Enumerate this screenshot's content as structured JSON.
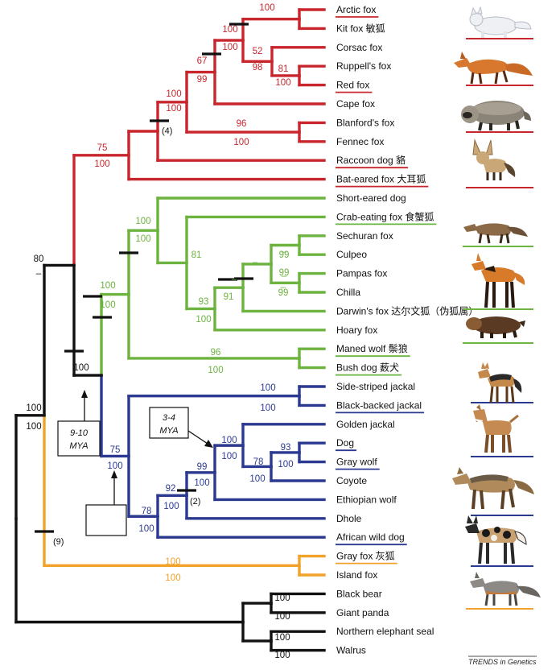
{
  "colors": {
    "fox": "#c8252c",
    "south_american": "#6cb33f",
    "wolf": "#2b3990",
    "gray_fox": "#f0a22b",
    "outgroup": "#111111"
  },
  "taxa": [
    {
      "label": "Arctic fox",
      "clade": "fox",
      "underline": true
    },
    {
      "label": "Kit fox 敏狐",
      "clade": "fox",
      "underline": false
    },
    {
      "label": "Corsac fox",
      "clade": "fox",
      "underline": false
    },
    {
      "label": "Ruppell's fox",
      "clade": "fox",
      "underline": false
    },
    {
      "label": "Red fox",
      "clade": "fox",
      "underline": true
    },
    {
      "label": "Cape fox",
      "clade": "fox",
      "underline": false
    },
    {
      "label": "Blanford's fox",
      "clade": "fox",
      "underline": false
    },
    {
      "label": "Fennec fox",
      "clade": "fox",
      "underline": false
    },
    {
      "label": "Raccoon dog 貉",
      "clade": "fox",
      "underline": true
    },
    {
      "label": "Bat-eared fox 大耳狐",
      "clade": "fox",
      "underline": true
    },
    {
      "label": "Short-eared dog",
      "clade": "south_american",
      "underline": false
    },
    {
      "label": "Crab-eating fox 食蟹狐",
      "clade": "south_american",
      "underline": true
    },
    {
      "label": "Sechuran fox",
      "clade": "south_american",
      "underline": false
    },
    {
      "label": "Culpeo",
      "clade": "south_american",
      "underline": false
    },
    {
      "label": "Pampas fox",
      "clade": "south_american",
      "underline": false
    },
    {
      "label": "Chilla",
      "clade": "south_american",
      "underline": false
    },
    {
      "label": "Darwin's fox 达尔文狐（伪狐属）",
      "clade": "south_american",
      "underline": false
    },
    {
      "label": "Hoary fox",
      "clade": "south_american",
      "underline": false
    },
    {
      "label": "Maned wolf 鬃狼",
      "clade": "south_american",
      "underline": true
    },
    {
      "label": "Bush dog 薮犬",
      "clade": "south_american",
      "underline": true
    },
    {
      "label": "Side-striped jackal",
      "clade": "wolf",
      "underline": false
    },
    {
      "label": "Black-backed jackal",
      "clade": "wolf",
      "underline": true
    },
    {
      "label": "Golden jackal",
      "clade": "wolf",
      "underline": false
    },
    {
      "label": "Dog",
      "clade": "wolf",
      "underline": true
    },
    {
      "label": "Gray wolf",
      "clade": "wolf",
      "underline": true
    },
    {
      "label": "Coyote",
      "clade": "wolf",
      "underline": false
    },
    {
      "label": "Ethiopian wolf",
      "clade": "wolf",
      "underline": false
    },
    {
      "label": "Dhole",
      "clade": "wolf",
      "underline": false
    },
    {
      "label": "African wild dog",
      "clade": "wolf",
      "underline": true
    },
    {
      "label": "Gray fox 灰狐",
      "clade": "gray_fox",
      "underline": true
    },
    {
      "label": "Island fox",
      "clade": "gray_fox",
      "underline": false
    },
    {
      "label": "Black bear",
      "clade": "outgroup",
      "underline": false
    },
    {
      "label": "Giant panda",
      "clade": "outgroup",
      "underline": false
    },
    {
      "label": "Northern elephant seal",
      "clade": "outgroup",
      "underline": false
    },
    {
      "label": "Walrus",
      "clade": "outgroup",
      "underline": false
    }
  ],
  "support": [
    {
      "text": "100",
      "clade": "fox"
    },
    {
      "text": "100",
      "clade": "fox"
    },
    {
      "text": "100",
      "clade": "fox"
    },
    {
      "text": "52",
      "clade": "fox"
    },
    {
      "text": "98",
      "clade": "fox"
    },
    {
      "text": "81",
      "clade": "fox"
    },
    {
      "text": "100",
      "clade": "fox"
    },
    {
      "text": "67",
      "clade": "fox"
    },
    {
      "text": "99",
      "clade": "fox"
    },
    {
      "text": "100",
      "clade": "fox"
    },
    {
      "text": "100",
      "clade": "fox"
    },
    {
      "text": "96",
      "clade": "fox"
    },
    {
      "text": "100",
      "clade": "fox"
    },
    {
      "text": "75",
      "clade": "fox"
    },
    {
      "text": "100",
      "clade": "fox"
    },
    {
      "text": "100",
      "clade": "south_american"
    },
    {
      "text": "100",
      "clade": "south_american"
    },
    {
      "text": "81",
      "clade": "south_american"
    },
    {
      "text": "–",
      "clade": "south_american"
    },
    {
      "text": "93",
      "clade": "south_american"
    },
    {
      "text": "100",
      "clade": "south_american"
    },
    {
      "text": "–",
      "clade": "south_american"
    },
    {
      "text": "91",
      "clade": "south_american"
    },
    {
      "text": "–",
      "clade": "south_american"
    },
    {
      "text": "99",
      "clade": "south_american"
    },
    {
      "text": "–",
      "clade": "south_american"
    },
    {
      "text": "99",
      "clade": "south_american"
    },
    {
      "text": "–",
      "clade": "south_american"
    },
    {
      "text": "99",
      "clade": "south_american"
    },
    {
      "text": "100",
      "clade": "south_american"
    },
    {
      "text": "100",
      "clade": "south_american"
    },
    {
      "text": "96",
      "clade": "south_american"
    },
    {
      "text": "100",
      "clade": "south_american"
    },
    {
      "text": "100",
      "clade": "wolf"
    },
    {
      "text": "100",
      "clade": "wolf"
    },
    {
      "text": "75",
      "clade": "wolf"
    },
    {
      "text": "100",
      "clade": "wolf"
    },
    {
      "text": "78",
      "clade": "wolf"
    },
    {
      "text": "100",
      "clade": "wolf"
    },
    {
      "text": "92",
      "clade": "wolf"
    },
    {
      "text": "100",
      "clade": "wolf"
    },
    {
      "text": "99",
      "clade": "wolf"
    },
    {
      "text": "100",
      "clade": "wolf"
    },
    {
      "text": "100",
      "clade": "wolf"
    },
    {
      "text": "100",
      "clade": "wolf"
    },
    {
      "text": "78",
      "clade": "wolf"
    },
    {
      "text": "100",
      "clade": "wolf"
    },
    {
      "text": "93",
      "clade": "wolf"
    },
    {
      "text": "100",
      "clade": "wolf"
    },
    {
      "text": "100",
      "clade": "gray_fox"
    },
    {
      "text": "100",
      "clade": "gray_fox"
    },
    {
      "text": "80",
      "clade": "outgroup"
    },
    {
      "text": "–",
      "clade": "outgroup"
    },
    {
      "text": "100",
      "clade": "outgroup"
    },
    {
      "text": "100",
      "clade": "outgroup"
    },
    {
      "text": "100",
      "clade": "outgroup"
    },
    {
      "text": "100",
      "clade": "outgroup"
    },
    {
      "text": "100",
      "clade": "outgroup"
    },
    {
      "text": "100",
      "clade": "outgroup"
    },
    {
      "text": "100",
      "clade": "outgroup"
    }
  ],
  "indel_counts": [
    "(4)",
    "(2)",
    "(9)"
  ],
  "date_boxes": [
    {
      "line1": "9-10",
      "line2": "MYA"
    },
    {
      "line1": "3-4",
      "line2": "MYA"
    }
  ],
  "credit": "TRENDS in Genetics",
  "illustrations": [
    {
      "icon": "arctic-fox-icon",
      "clade": "fox"
    },
    {
      "icon": "red-fox-icon",
      "clade": "fox"
    },
    {
      "icon": "raccoon-dog-icon",
      "clade": "fox"
    },
    {
      "icon": "bat-eared-fox-icon",
      "clade": "fox"
    },
    {
      "icon": "crab-eating-fox-icon",
      "clade": "south_american"
    },
    {
      "icon": "maned-wolf-icon",
      "clade": "south_american"
    },
    {
      "icon": "bush-dog-icon",
      "clade": "south_american"
    },
    {
      "icon": "black-backed-jackal-icon",
      "clade": "wolf"
    },
    {
      "icon": "dog-icon",
      "clade": "wolf"
    },
    {
      "icon": "gray-wolf-icon",
      "clade": "wolf"
    },
    {
      "icon": "african-wild-dog-icon",
      "clade": "wolf"
    },
    {
      "icon": "gray-fox-icon",
      "clade": "gray_fox"
    }
  ]
}
